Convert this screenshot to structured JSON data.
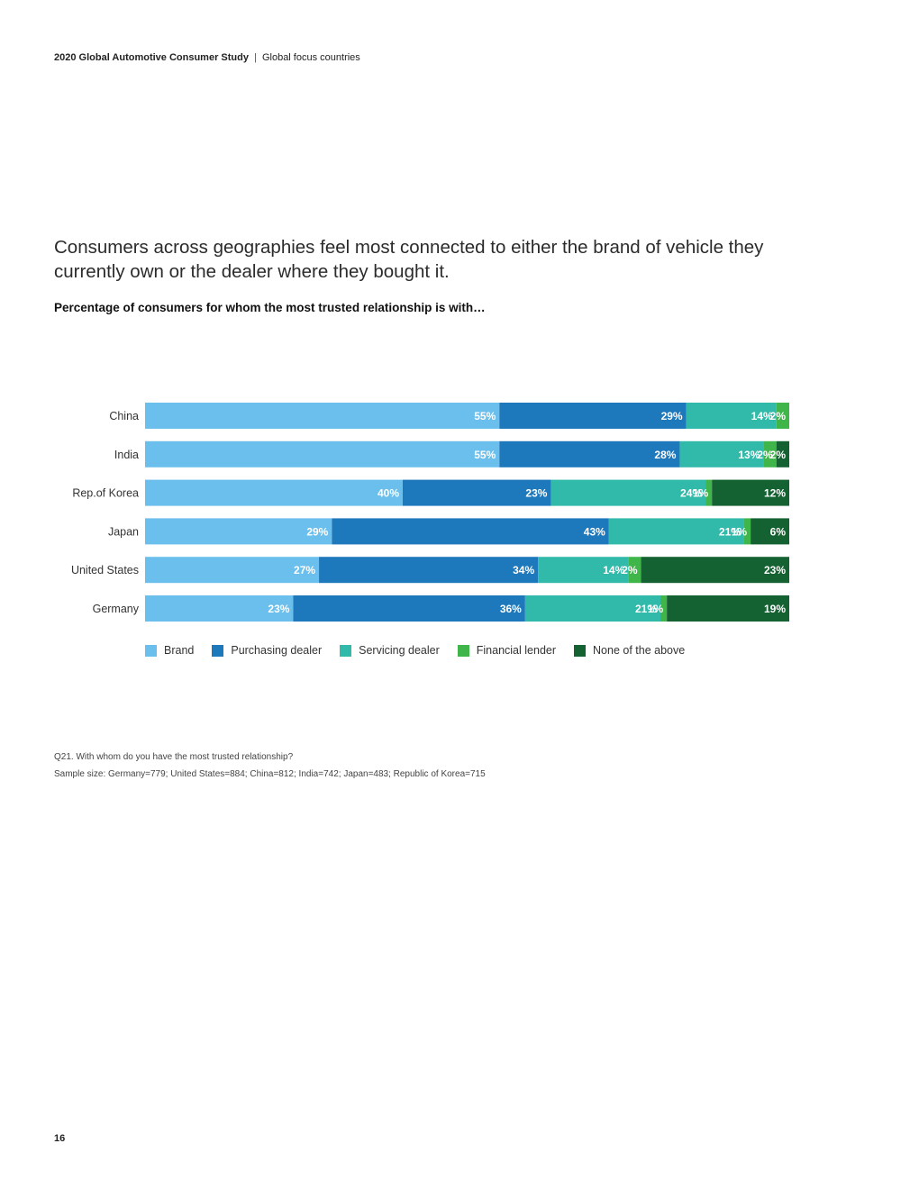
{
  "header": {
    "title": "2020 Global Automotive Consumer Study",
    "separator": "|",
    "section": "Global focus countries"
  },
  "headline": "Consumers across geographies feel most connected to either the brand of vehicle they currently own or the dealer where they bought it.",
  "chart_data": {
    "type": "bar",
    "orientation": "horizontal",
    "stacked": true,
    "title": "Percentage of consumers for whom the most trusted relationship is with…",
    "categories": [
      "China",
      "India",
      "Rep.of Korea",
      "Japan",
      "United States",
      "Germany"
    ],
    "series": [
      {
        "name": "Brand",
        "color": "#6bbfec",
        "values": [
          55,
          55,
          40,
          29,
          27,
          23
        ]
      },
      {
        "name": "Purchasing dealer",
        "color": "#1e78bc",
        "values": [
          29,
          28,
          23,
          43,
          34,
          36
        ]
      },
      {
        "name": "Servicing dealer",
        "color": "#31b9a9",
        "values": [
          14,
          13,
          24,
          21,
          14,
          21
        ]
      },
      {
        "name": "Financial lender",
        "color": "#3fb54a",
        "values": [
          2,
          2,
          1,
          1,
          2,
          1
        ]
      },
      {
        "name": "None of the above",
        "color": "#146131",
        "values": [
          null,
          2,
          12,
          6,
          23,
          19
        ]
      }
    ],
    "value_suffix": "%",
    "legend_position": "bottom",
    "grid": false
  },
  "footnotes": [
    "Q21. With whom do you have the most trusted relationship?",
    "Sample size: Germany=779; United States=884; China=812; India=742; Japan=483; Republic of Korea=715"
  ],
  "page_number": "16"
}
